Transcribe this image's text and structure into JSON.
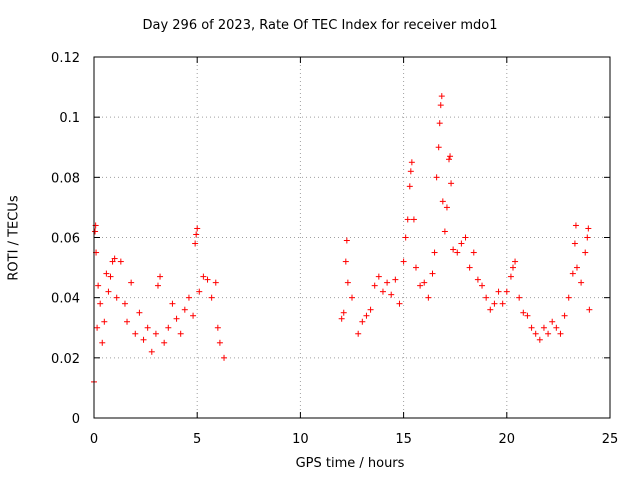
{
  "chart_data": {
    "type": "scatter",
    "title": "Day 296 of 2023, Rate Of TEC Index for receiver mdo1",
    "xlabel": "GPS time / hours",
    "ylabel": "ROTI / TECUs",
    "xlim": [
      0,
      25
    ],
    "ylim": [
      0,
      0.12
    ],
    "xticks": [
      "0",
      "5",
      "10",
      "15",
      "20",
      "25"
    ],
    "yticks": [
      "0",
      "0.02",
      "0.04",
      "0.06",
      "0.08",
      "0.1",
      "0.12"
    ],
    "grid": true,
    "marker": "+",
    "color": "#ff0000",
    "series": [
      {
        "points": [
          [
            0.0,
            0.012
          ],
          [
            0.05,
            0.062
          ],
          [
            0.08,
            0.064
          ],
          [
            0.1,
            0.055
          ],
          [
            0.15,
            0.03
          ],
          [
            0.2,
            0.044
          ],
          [
            0.3,
            0.038
          ],
          [
            0.4,
            0.025
          ],
          [
            0.5,
            0.032
          ],
          [
            0.6,
            0.048
          ],
          [
            0.7,
            0.042
          ],
          [
            0.8,
            0.047
          ],
          [
            0.9,
            0.052
          ],
          [
            1.0,
            0.053
          ],
          [
            1.1,
            0.04
          ],
          [
            1.3,
            0.052
          ],
          [
            1.5,
            0.038
          ],
          [
            1.6,
            0.032
          ],
          [
            1.8,
            0.045
          ],
          [
            2.0,
            0.028
          ],
          [
            2.2,
            0.035
          ],
          [
            2.4,
            0.026
          ],
          [
            2.6,
            0.03
          ],
          [
            2.8,
            0.022
          ],
          [
            3.0,
            0.028
          ],
          [
            3.1,
            0.044
          ],
          [
            3.2,
            0.047
          ],
          [
            3.4,
            0.025
          ],
          [
            3.6,
            0.03
          ],
          [
            3.8,
            0.038
          ],
          [
            4.0,
            0.033
          ],
          [
            4.2,
            0.028
          ],
          [
            4.4,
            0.036
          ],
          [
            4.6,
            0.04
          ],
          [
            4.8,
            0.034
          ],
          [
            4.9,
            0.058
          ],
          [
            4.95,
            0.061
          ],
          [
            5.0,
            0.063
          ],
          [
            5.1,
            0.042
          ],
          [
            5.3,
            0.047
          ],
          [
            5.5,
            0.046
          ],
          [
            5.7,
            0.04
          ],
          [
            5.9,
            0.045
          ],
          [
            6.0,
            0.03
          ],
          [
            6.1,
            0.025
          ],
          [
            6.3,
            0.02
          ],
          [
            12.0,
            0.033
          ],
          [
            12.1,
            0.035
          ],
          [
            12.2,
            0.052
          ],
          [
            12.25,
            0.059
          ],
          [
            12.3,
            0.045
          ],
          [
            12.5,
            0.04
          ],
          [
            12.8,
            0.028
          ],
          [
            13.0,
            0.032
          ],
          [
            13.2,
            0.034
          ],
          [
            13.4,
            0.036
          ],
          [
            13.6,
            0.044
          ],
          [
            13.8,
            0.047
          ],
          [
            14.0,
            0.042
          ],
          [
            14.2,
            0.045
          ],
          [
            14.4,
            0.041
          ],
          [
            14.6,
            0.046
          ],
          [
            14.8,
            0.038
          ],
          [
            15.0,
            0.052
          ],
          [
            15.1,
            0.06
          ],
          [
            15.2,
            0.066
          ],
          [
            15.3,
            0.077
          ],
          [
            15.35,
            0.082
          ],
          [
            15.4,
            0.085
          ],
          [
            15.5,
            0.066
          ],
          [
            15.6,
            0.05
          ],
          [
            15.8,
            0.044
          ],
          [
            16.0,
            0.045
          ],
          [
            16.2,
            0.04
          ],
          [
            16.4,
            0.048
          ],
          [
            16.5,
            0.055
          ],
          [
            16.6,
            0.08
          ],
          [
            16.7,
            0.09
          ],
          [
            16.75,
            0.098
          ],
          [
            16.8,
            0.104
          ],
          [
            16.85,
            0.107
          ],
          [
            16.9,
            0.072
          ],
          [
            17.0,
            0.062
          ],
          [
            17.1,
            0.07
          ],
          [
            17.2,
            0.086
          ],
          [
            17.25,
            0.087
          ],
          [
            17.3,
            0.078
          ],
          [
            17.4,
            0.056
          ],
          [
            17.6,
            0.055
          ],
          [
            17.8,
            0.058
          ],
          [
            18.0,
            0.06
          ],
          [
            18.2,
            0.05
          ],
          [
            18.4,
            0.055
          ],
          [
            18.6,
            0.046
          ],
          [
            18.8,
            0.044
          ],
          [
            19.0,
            0.04
          ],
          [
            19.2,
            0.036
          ],
          [
            19.4,
            0.038
          ],
          [
            19.6,
            0.042
          ],
          [
            19.8,
            0.038
          ],
          [
            20.0,
            0.042
          ],
          [
            20.2,
            0.047
          ],
          [
            20.3,
            0.05
          ],
          [
            20.4,
            0.052
          ],
          [
            20.6,
            0.04
          ],
          [
            20.8,
            0.035
          ],
          [
            21.0,
            0.034
          ],
          [
            21.2,
            0.03
          ],
          [
            21.4,
            0.028
          ],
          [
            21.6,
            0.026
          ],
          [
            21.8,
            0.03
          ],
          [
            22.0,
            0.028
          ],
          [
            22.2,
            0.032
          ],
          [
            22.4,
            0.03
          ],
          [
            22.6,
            0.028
          ],
          [
            22.8,
            0.034
          ],
          [
            23.0,
            0.04
          ],
          [
            23.2,
            0.048
          ],
          [
            23.3,
            0.058
          ],
          [
            23.35,
            0.064
          ],
          [
            23.4,
            0.05
          ],
          [
            23.6,
            0.045
          ],
          [
            23.8,
            0.055
          ],
          [
            23.9,
            0.06
          ],
          [
            23.95,
            0.063
          ],
          [
            24.0,
            0.036
          ]
        ]
      }
    ]
  }
}
